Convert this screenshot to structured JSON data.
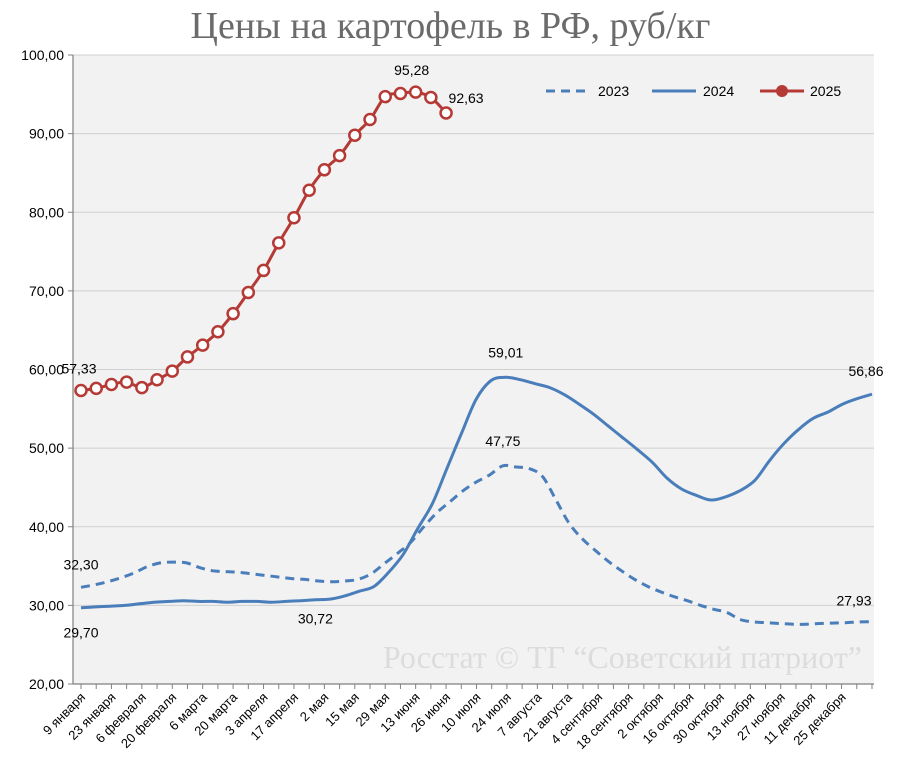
{
  "chart_data": {
    "type": "line",
    "title": "Цены на картофель в РФ, руб/кг",
    "watermark": "Росстат © ТГ “Советский патриот”",
    "ylim": [
      20,
      100
    ],
    "yticks": [
      "20,00",
      "30,00",
      "40,00",
      "50,00",
      "60,00",
      "70,00",
      "80,00",
      "90,00",
      "100,00"
    ],
    "ytick_values": [
      20,
      30,
      40,
      50,
      60,
      70,
      80,
      90,
      100
    ],
    "xticks": [
      {
        "label": "9 января",
        "week": 0
      },
      {
        "label": "23 января",
        "week": 2
      },
      {
        "label": "6 февраля",
        "week": 4
      },
      {
        "label": "20 февраля",
        "week": 6
      },
      {
        "label": "6 марта",
        "week": 8
      },
      {
        "label": "20 марта",
        "week": 10
      },
      {
        "label": "3 апреля",
        "week": 12
      },
      {
        "label": "17 апреля",
        "week": 14
      },
      {
        "label": "2 мая",
        "week": 16
      },
      {
        "label": "15 мая",
        "week": 18
      },
      {
        "label": "29 мая",
        "week": 20
      },
      {
        "label": "13 июня",
        "week": 22
      },
      {
        "label": "26 июня",
        "week": 24
      },
      {
        "label": "10 июля",
        "week": 26
      },
      {
        "label": "24 июля",
        "week": 28
      },
      {
        "label": "7 августа",
        "week": 30
      },
      {
        "label": "21 августа",
        "week": 32
      },
      {
        "label": "4 сентября",
        "week": 34
      },
      {
        "label": "18 сентября",
        "week": 36
      },
      {
        "label": "2 октября",
        "week": 38
      },
      {
        "label": "16 октября",
        "week": 40
      },
      {
        "label": "30 октября",
        "week": 42
      },
      {
        "label": "13 ноября",
        "week": 44
      },
      {
        "label": "27 ноября",
        "week": 46
      },
      {
        "label": "11 декабря",
        "week": 48
      },
      {
        "label": "25 декабря",
        "week": 50
      }
    ],
    "legend_position": "top-right",
    "series": [
      {
        "name": "2023",
        "style": "dashed",
        "color": "#4a7ebb",
        "values": [
          32.3,
          32.6,
          33.0,
          33.5,
          34.1,
          34.9,
          35.4,
          35.5,
          35.4,
          34.8,
          34.4,
          34.3,
          34.2,
          34.0,
          33.8,
          33.6,
          33.4,
          33.3,
          33.1,
          33.0,
          33.1,
          33.3,
          34.0,
          35.3,
          36.6,
          38.0,
          40.0,
          41.8,
          43.2,
          44.6,
          45.7,
          46.6,
          47.75,
          47.6,
          47.4,
          46.4,
          43.5,
          40.5,
          38.5,
          37.0,
          35.6,
          34.4,
          33.3,
          32.4,
          31.7,
          31.1,
          30.6,
          30.0,
          29.5,
          29.1,
          28.2,
          27.9,
          27.8,
          27.7,
          27.6,
          27.6,
          27.7,
          27.75,
          27.8,
          27.9,
          27.93
        ]
      },
      {
        "name": "2024",
        "style": "solid",
        "color": "#4a7ebb",
        "values": [
          29.7,
          29.8,
          29.9,
          30.0,
          30.2,
          30.4,
          30.5,
          30.6,
          30.5,
          30.5,
          30.4,
          30.5,
          30.5,
          30.4,
          30.5,
          30.6,
          30.72,
          30.8,
          31.2,
          31.8,
          32.4,
          34.2,
          36.5,
          39.8,
          43.0,
          47.5,
          52.0,
          56.3,
          58.6,
          59.01,
          58.7,
          58.2,
          57.7,
          56.8,
          55.6,
          54.3,
          52.8,
          51.3,
          49.8,
          48.2,
          46.2,
          44.8,
          44.0,
          43.4,
          43.8,
          44.6,
          45.9,
          48.4,
          50.6,
          52.4,
          53.8,
          54.6,
          55.6,
          56.3,
          56.86
        ]
      },
      {
        "name": "2025",
        "style": "solid-markers",
        "color": "#b53a35",
        "values": [
          57.33,
          57.6,
          58.1,
          58.4,
          57.7,
          58.7,
          59.8,
          61.6,
          63.1,
          64.8,
          67.1,
          69.8,
          72.6,
          76.1,
          79.3,
          82.8,
          85.4,
          87.2,
          89.8,
          91.8,
          94.7,
          95.1,
          95.28,
          94.6,
          92.63
        ]
      }
    ],
    "data_labels": [
      {
        "series": "2023",
        "text": "32,30"
      },
      {
        "series": "2023",
        "text": "47,75"
      },
      {
        "series": "2023",
        "text": "27,93"
      },
      {
        "series": "2024",
        "text": "29,70"
      },
      {
        "series": "2024",
        "text": "30,72"
      },
      {
        "series": "2024",
        "text": "59,01"
      },
      {
        "series": "2024",
        "text": "56,86"
      },
      {
        "series": "2025",
        "text": "57,33"
      },
      {
        "series": "2025",
        "text": "95,28"
      },
      {
        "series": "2025",
        "text": "92,63"
      }
    ]
  }
}
